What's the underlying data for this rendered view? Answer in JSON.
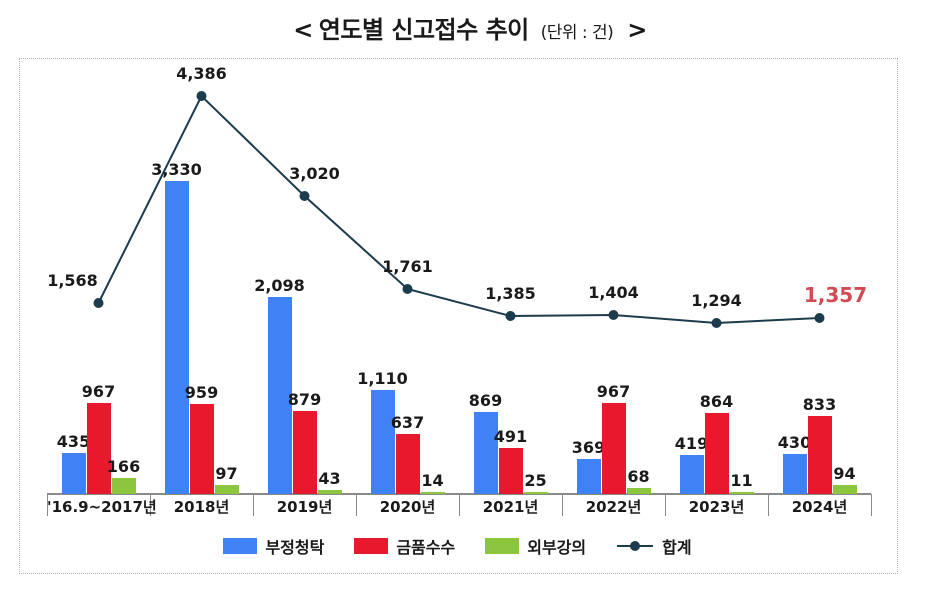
{
  "title": {
    "open": "<",
    "main": "연도별 신고접수 추이",
    "unit": "(단위 : 건)",
    "close": ">"
  },
  "colors": {
    "axis": "#8a8a8a",
    "border": "#b3b3b3",
    "label": "#1a1a1a",
    "highlight_label": "#d24a52"
  },
  "chart_data": {
    "type": "bar",
    "subtype": "grouped-bars-with-total-line",
    "title": "연도별 신고접수 추이 (단위 : 건)",
    "xlabel": "",
    "ylabel": "",
    "ylim": [
      0,
      4800
    ],
    "grid": false,
    "legend_position": "bottom",
    "value_labels": true,
    "categories": [
      "'16.9~2017년",
      "2018년",
      "2019년",
      "2020년",
      "2021년",
      "2022년",
      "2023년",
      "2024년"
    ],
    "series": [
      {
        "name": "부정청탁",
        "type": "bar",
        "color": "#3e82f5",
        "values": [
          435,
          3330,
          2098,
          1110,
          869,
          369,
          419,
          430
        ]
      },
      {
        "name": "금품수수",
        "type": "bar",
        "color": "#e8192c",
        "values": [
          967,
          959,
          879,
          637,
          491,
          967,
          864,
          833
        ]
      },
      {
        "name": "외부강의",
        "type": "bar",
        "color": "#8cc63f",
        "values": [
          166,
          97,
          43,
          14,
          25,
          68,
          11,
          94
        ]
      },
      {
        "name": "합계",
        "type": "line",
        "color": "#1c3c4e",
        "values": [
          1568,
          4386,
          3020,
          1761,
          1385,
          1404,
          1294,
          1357
        ],
        "last_label_color": "#d24a52"
      }
    ]
  }
}
